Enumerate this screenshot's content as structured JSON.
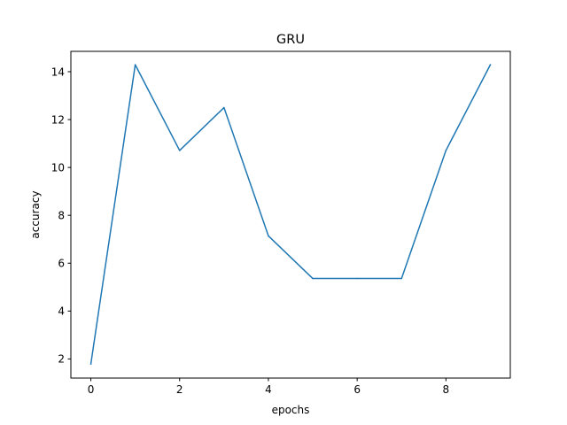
{
  "chart_data": {
    "type": "line",
    "title": "GRU",
    "xlabel": "epochs",
    "ylabel": "accuracy",
    "xlim": [
      -0.45,
      9.45
    ],
    "ylim": [
      1.2,
      14.85
    ],
    "xticks": [
      0,
      2,
      4,
      6,
      8
    ],
    "xtick_labels": [
      "0",
      "2",
      "4",
      "6",
      "8"
    ],
    "yticks": [
      2,
      4,
      6,
      8,
      10,
      12,
      14
    ],
    "ytick_labels": [
      "2",
      "4",
      "6",
      "8",
      "10",
      "12",
      "14"
    ],
    "grid": false,
    "legend": "none",
    "series": [
      {
        "color": "#1f77b4",
        "x": [
          0,
          1,
          2,
          3,
          4,
          5,
          6,
          7,
          8,
          9
        ],
        "y": [
          1.79,
          14.29,
          10.71,
          12.5,
          7.14,
          5.36,
          5.36,
          5.36,
          10.71,
          14.29
        ]
      }
    ]
  }
}
